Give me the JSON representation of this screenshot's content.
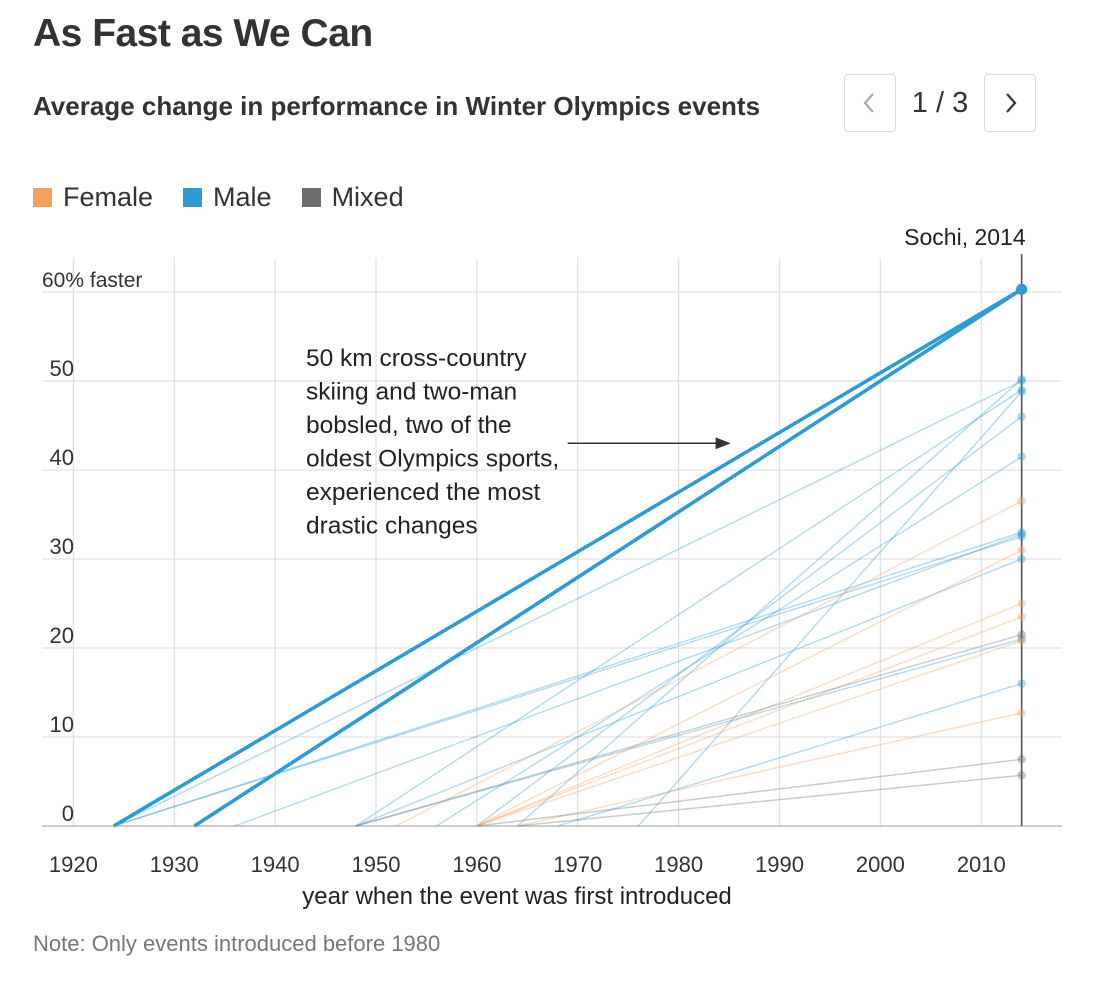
{
  "title": "As Fast as We Can",
  "subtitle": "Average change in performance in Winter Olympics events",
  "pager": {
    "text": "1 / 3",
    "prev_icon": "chevron-left-icon",
    "next_icon": "chevron-right-icon"
  },
  "legend": [
    {
      "label": "Female",
      "color": "#f5a15b"
    },
    {
      "label": "Male",
      "color": "#2e9bd6"
    },
    {
      "label": "Mixed",
      "color": "#6d6d6d"
    }
  ],
  "note": "Note: Only events introduced before 1980",
  "chart_data": {
    "type": "line",
    "title": "As Fast as We Can",
    "subtitle": "Average change in performance in Winter Olympics events",
    "xlabel": "year when the event was first introduced",
    "ylabel": "",
    "xlim": [
      1916,
      2018
    ],
    "ylim": [
      0,
      60
    ],
    "xticks": [
      1920,
      1930,
      1940,
      1950,
      1960,
      1970,
      1980,
      1990,
      2000,
      2010
    ],
    "yticks": [
      {
        "value": 0,
        "label": "0"
      },
      {
        "value": 10,
        "label": "10"
      },
      {
        "value": 20,
        "label": "20"
      },
      {
        "value": 30,
        "label": "30"
      },
      {
        "value": 40,
        "label": "40"
      },
      {
        "value": 50,
        "label": "50"
      },
      {
        "value": 60,
        "label": "60% faster"
      }
    ],
    "end_year": 2014,
    "end_label": "Sochi, 2014",
    "grid": true,
    "annotation": {
      "lines": [
        "50 km cross-country",
        "skiing and two-man",
        "bobsled, two of the",
        "oldest Olympics sports,",
        "experienced the most",
        "drastic changes"
      ],
      "arrow_from": [
        1969,
        43
      ],
      "arrow_to": [
        1985,
        43
      ]
    },
    "series": [
      {
        "name": "50 km cross-country skiing",
        "gender": "Male",
        "highlight": true,
        "start_year": 1924,
        "change": 60.3
      },
      {
        "name": "Two-man bobsled",
        "gender": "Male",
        "highlight": true,
        "start_year": 1932,
        "change": 60.3
      },
      {
        "name": "Male event",
        "gender": "Male",
        "highlight": false,
        "start_year": 1924,
        "change": 50.0
      },
      {
        "name": "Male event",
        "gender": "Male",
        "highlight": false,
        "start_year": 1924,
        "change": 33.0
      },
      {
        "name": "Male event",
        "gender": "Male",
        "highlight": false,
        "start_year": 1924,
        "change": 32.5
      },
      {
        "name": "Male event",
        "gender": "Male",
        "highlight": false,
        "start_year": 1936,
        "change": 32.8
      },
      {
        "name": "Male event",
        "gender": "Male",
        "highlight": false,
        "start_year": 1948,
        "change": 49.0
      },
      {
        "name": "Male event",
        "gender": "Male",
        "highlight": false,
        "start_year": 1948,
        "change": 30.0
      },
      {
        "name": "Male event",
        "gender": "Male",
        "highlight": false,
        "start_year": 1948,
        "change": 21.0
      },
      {
        "name": "Male event",
        "gender": "Male",
        "highlight": false,
        "start_year": 1956,
        "change": 41.5
      },
      {
        "name": "Male event",
        "gender": "Male",
        "highlight": false,
        "start_year": 1960,
        "change": 46.0
      },
      {
        "name": "Male event",
        "gender": "Male",
        "highlight": false,
        "start_year": 1964,
        "change": 50.2
      },
      {
        "name": "Male event",
        "gender": "Male",
        "highlight": false,
        "start_year": 1968,
        "change": 16.0
      },
      {
        "name": "Male event",
        "gender": "Male",
        "highlight": false,
        "start_year": 1976,
        "change": 48.8
      },
      {
        "name": "Female event",
        "gender": "Female",
        "highlight": false,
        "start_year": 1952,
        "change": 36.5
      },
      {
        "name": "Female event",
        "gender": "Female",
        "highlight": false,
        "start_year": 1960,
        "change": 31.0
      },
      {
        "name": "Female event",
        "gender": "Female",
        "highlight": false,
        "start_year": 1960,
        "change": 25.0
      },
      {
        "name": "Female event",
        "gender": "Female",
        "highlight": false,
        "start_year": 1960,
        "change": 23.5
      },
      {
        "name": "Female event",
        "gender": "Female",
        "highlight": false,
        "start_year": 1960,
        "change": 20.8
      },
      {
        "name": "Female event",
        "gender": "Female",
        "highlight": false,
        "start_year": 1964,
        "change": 12.7
      },
      {
        "name": "Mixed event",
        "gender": "Mixed",
        "highlight": false,
        "start_year": 1948,
        "change": 21.5
      },
      {
        "name": "Mixed event",
        "gender": "Mixed",
        "highlight": false,
        "start_year": 1960,
        "change": 7.5
      },
      {
        "name": "Mixed event",
        "gender": "Mixed",
        "highlight": false,
        "start_year": 1964,
        "change": 5.7
      }
    ]
  }
}
